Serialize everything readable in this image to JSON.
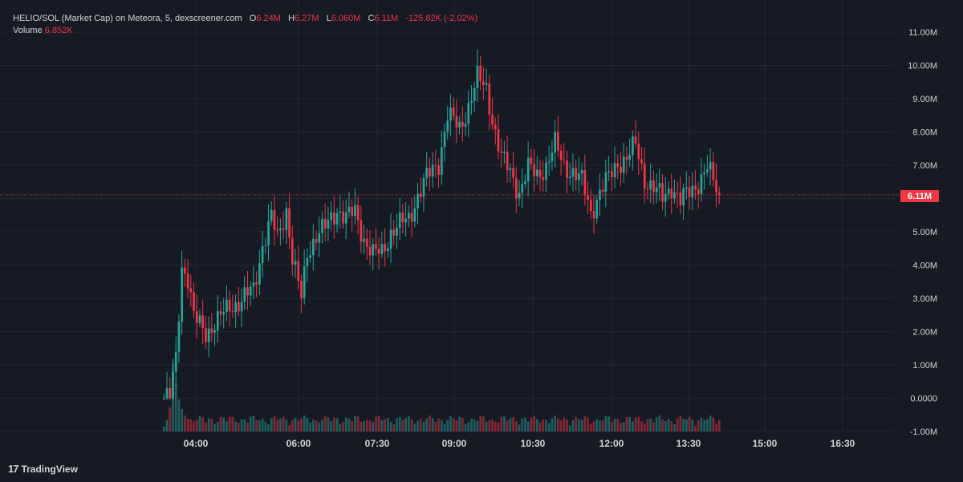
{
  "legend": {
    "symbol": "HELIO/SOL (Market Cap) on Meteora, 5, dexscreener.com",
    "open_label": "O",
    "open": "6.24M",
    "high_label": "H",
    "high": "6.27M",
    "low_label": "L",
    "low": "6.060M",
    "close_label": "C",
    "close": "6.11M",
    "change": "-125.82K (-2.02%)",
    "volume_label": "Volume",
    "volume": "6.852K"
  },
  "price_badge": "6.11M",
  "brand": {
    "logo": "17",
    "name": "TradingView"
  },
  "colors": {
    "background": "#161a25",
    "up": "#26a69a",
    "down": "#f23645",
    "text": "#d1d4dc",
    "grid": "#232734"
  },
  "chart_data": {
    "type": "candlestick",
    "y_axis": {
      "min": -1.0,
      "max": 11.0,
      "unit": "M",
      "ticks": [
        "11.00M",
        "10.00M",
        "9.00M",
        "8.00M",
        "7.00M",
        "6.00M",
        "5.00M",
        "4.00M",
        "3.00M",
        "2.00M",
        "1.00M",
        "0.0000",
        "-1.00M"
      ]
    },
    "x_axis": {
      "ticks": [
        "04:00",
        "06:00",
        "07:30",
        "09:00",
        "10:30",
        "12:00",
        "13:30",
        "15:00",
        "16:30"
      ]
    },
    "current_price": 6.11,
    "grid": true
  }
}
